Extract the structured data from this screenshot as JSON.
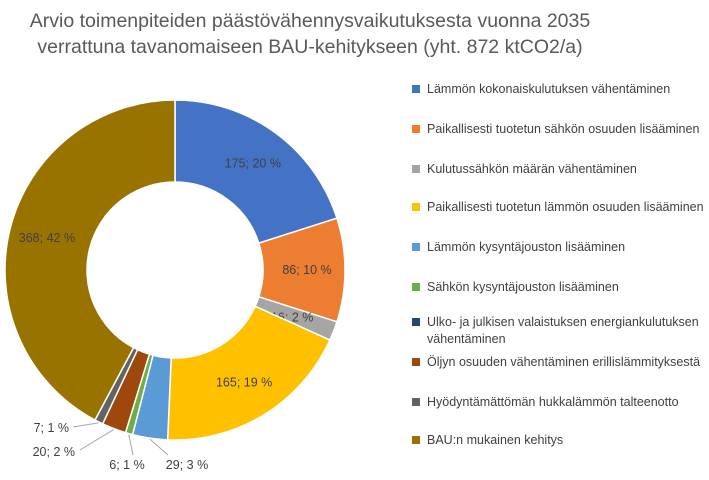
{
  "chart_data": {
    "type": "pie",
    "title_lines": [
      "Arvio toimenpiteiden päästövähennysvaikutuksesta vuonna 2035",
      "verrattuna tavanomaiseen BAU-kehitykseen (yht. 872 ktCO2/a)"
    ],
    "total": 872,
    "legend_position": "right",
    "slices": [
      {
        "name": "Lämmön kokonaiskulutuksen vähentäminen",
        "value": 175,
        "label": "175; 20 %",
        "color": "#4472C4"
      },
      {
        "name": "Paikallisesti tuotetun sähkön osuuden lisääminen",
        "value": 86,
        "label": "86; 10 %",
        "color": "#ED7D31"
      },
      {
        "name": "Kulutussähkön määrän vähentäminen",
        "value": 16,
        "label": "16; 2 %",
        "color": "#A5A5A5"
      },
      {
        "name": "Paikallisesti tuotetun lämmön osuuden lisääminen",
        "value": 165,
        "label": "165; 19 %",
        "color": "#FFC000"
      },
      {
        "name": "Lämmön kysyntäjouston lisääminen",
        "value": 29,
        "label": "29; 3 %",
        "color": "#5B9BD5"
      },
      {
        "name": "Sähkön kysyntäjouston lisääminen",
        "value": 6,
        "label": "6; 1 %",
        "color": "#70AD47"
      },
      {
        "name": "Ulko- ja julkisen valaistuksen energiankulutuksen vähentäminen",
        "value": 0,
        "label": "",
        "color": "#264478"
      },
      {
        "name": "Öljyn osuuden vähentäminen erillislämmityksestä",
        "value": 20,
        "label": "20; 2 %",
        "color": "#9E480E"
      },
      {
        "name": "Hyödyntämättömän hukkalämmön talteenotto",
        "value": 7,
        "label": "7; 1 %",
        "color": "#636363"
      },
      {
        "name": "BAU:n mukainen kehitys",
        "value": 368,
        "label": "368; 42 %",
        "color": "#997300"
      }
    ]
  }
}
